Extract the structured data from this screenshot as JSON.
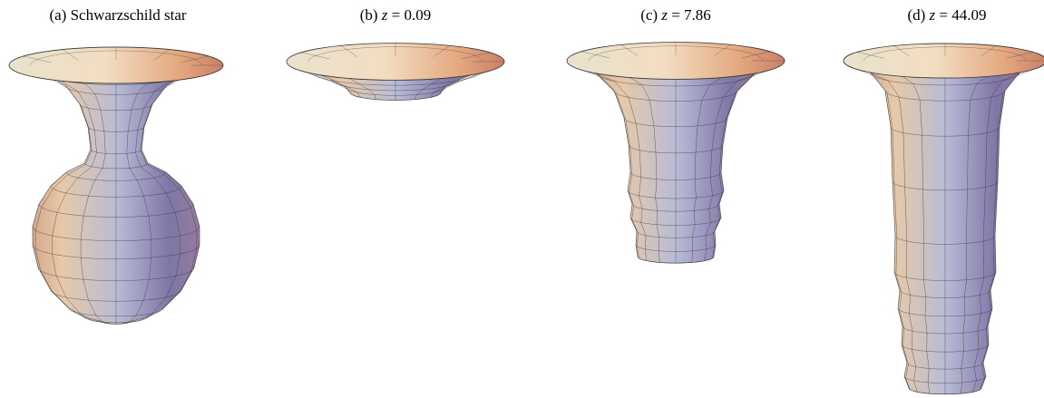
{
  "panels": [
    {
      "tag": "(a)",
      "caption": "Schwarzschild star"
    },
    {
      "tag": "(b)",
      "symbol": "z",
      "relation": "=",
      "value": 0.09
    },
    {
      "tag": "(c)",
      "symbol": "z",
      "relation": "=",
      "value": 7.86
    },
    {
      "tag": "(d)",
      "symbol": "z",
      "relation": "=",
      "value": 44.09
    }
  ]
}
